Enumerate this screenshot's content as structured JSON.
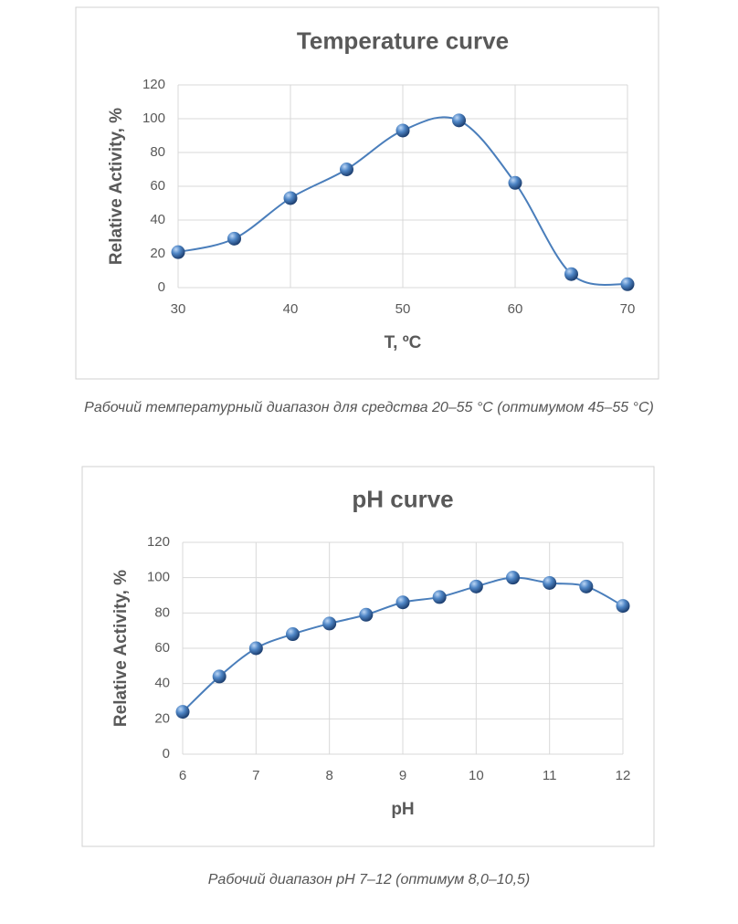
{
  "chart_data": [
    {
      "type": "line",
      "title": "Temperature curve",
      "x_label": "T, ºC",
      "y_label": "Relative Activity, %",
      "x": [
        30,
        35,
        40,
        45,
        50,
        55,
        60,
        65,
        70
      ],
      "series": [
        {
          "color": "#4a7ebb",
          "values": [
            21,
            29,
            53,
            70,
            93,
            99,
            62,
            8,
            2
          ]
        }
      ],
      "xlim": [
        30,
        70
      ],
      "xticks": [
        30,
        40,
        50,
        60,
        70
      ],
      "ylim": [
        0,
        120
      ],
      "yticks": [
        0,
        20,
        40,
        60,
        80,
        100,
        120
      ],
      "grid": true,
      "smooth": true,
      "caption": "Рабочий температурный диапазон для средства 20–55 °C (оптимумом 45–55 °C)"
    },
    {
      "type": "line",
      "title": "pH curve",
      "x_label": "pH",
      "y_label": "Relative Activity, %",
      "x": [
        6,
        6.5,
        7,
        7.5,
        8,
        8.5,
        9,
        9.5,
        10,
        10.5,
        11,
        11.5,
        12
      ],
      "series": [
        {
          "color": "#4a7ebb",
          "values": [
            24,
            44,
            60,
            68,
            74,
            79,
            86,
            89,
            95,
            100,
            97,
            95,
            84
          ]
        }
      ],
      "xlim": [
        6,
        12
      ],
      "xticks": [
        6,
        7,
        8,
        9,
        10,
        11,
        12
      ],
      "ylim": [
        0,
        120
      ],
      "yticks": [
        0,
        20,
        40,
        60,
        80,
        100,
        120
      ],
      "grid": true,
      "smooth": true,
      "caption": "Рабочий диапазон pH 7–12 (оптимум 8,0–10,5)"
    }
  ]
}
